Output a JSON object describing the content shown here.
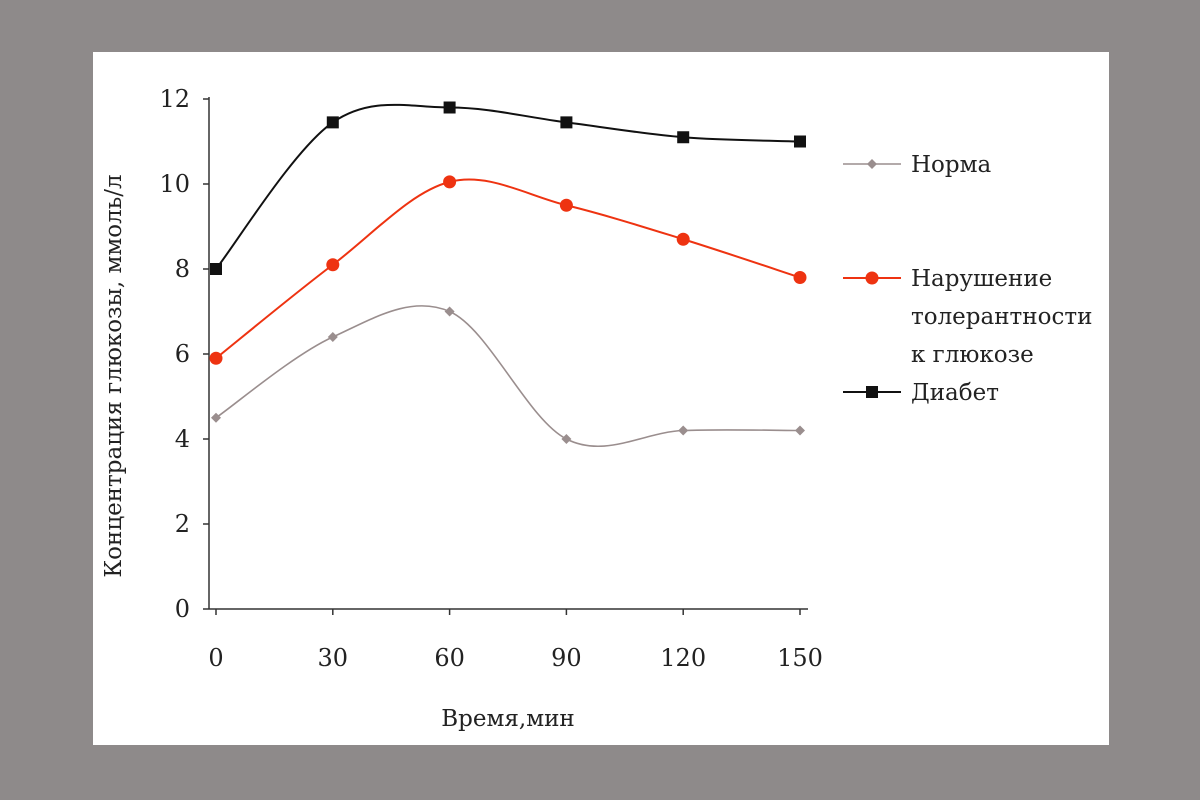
{
  "chart_data": {
    "type": "line",
    "xlabel": "Время,мин",
    "ylabel": "Концентрация глюкозы,  ммоль/л",
    "x": [
      0,
      30,
      60,
      90,
      120,
      150
    ],
    "x_tick_labels": [
      "0",
      "30",
      "60",
      "90",
      "120",
      "150"
    ],
    "y_ticks": [
      0,
      2,
      4,
      6,
      8,
      10,
      12
    ],
    "y_tick_labels": [
      "0",
      "2",
      "4",
      "6",
      "8",
      "10",
      "12"
    ],
    "xlim": [
      0,
      150
    ],
    "ylim": [
      0,
      12
    ],
    "grid": false,
    "legend_position": "right",
    "smooth": true,
    "series": [
      {
        "name": "Норма",
        "legend_lines": [
          "Норма"
        ],
        "values": [
          4.5,
          6.4,
          7.0,
          4.0,
          4.2,
          4.2
        ],
        "color": "#9a8e8e",
        "marker": "diamond"
      },
      {
        "name": "Нарушение толерантности к глюкозе",
        "legend_lines": [
          "Нарушение",
          "толерантности",
          "к глюкозе"
        ],
        "values": [
          5.9,
          8.1,
          10.05,
          9.5,
          8.7,
          7.8
        ],
        "color": "#ee3311",
        "marker": "circle"
      },
      {
        "name": "Диабет",
        "legend_lines": [
          "Диабет"
        ],
        "values": [
          8.0,
          11.45,
          11.8,
          11.45,
          11.1,
          11.0
        ],
        "color": "#111111",
        "marker": "square"
      }
    ]
  }
}
